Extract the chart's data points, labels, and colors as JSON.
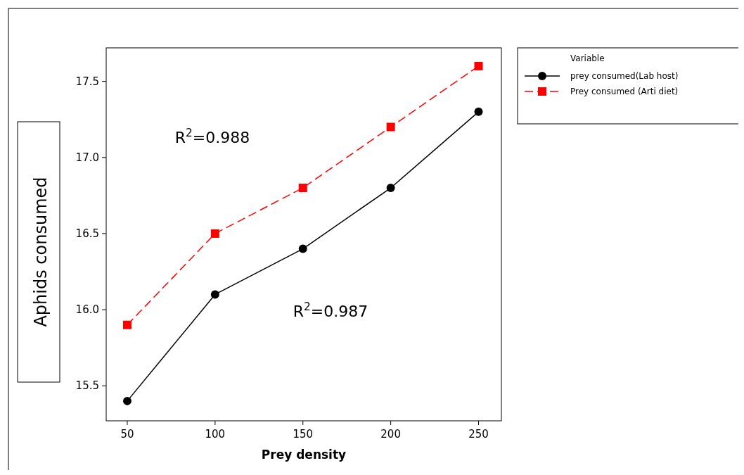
{
  "chart_data": {
    "type": "line",
    "xlabel": "Prey density",
    "ylabel": "Aphids consumed",
    "legend_title": "Variable",
    "legend": "right",
    "grid": false,
    "x": [
      50,
      100,
      150,
      200,
      250
    ],
    "xlim": [
      38,
      263
    ],
    "xticks": [
      50,
      100,
      150,
      200,
      250
    ],
    "ylim": [
      15.27,
      17.72
    ],
    "yticks": [
      {
        "value": 15.5,
        "label": "15.5"
      },
      {
        "value": 16,
        "label": "16.0"
      },
      {
        "value": 16.5,
        "label": "16.5"
      },
      {
        "value": 17,
        "label": "17.0"
      },
      {
        "value": 17.5,
        "label": "17.5"
      }
    ],
    "series": [
      {
        "name": "prey consumed(Lab host)",
        "color": "#000000",
        "marker": "circle",
        "line_style": "solid",
        "values": [
          15.4,
          16.1,
          16.4,
          16.8,
          17.3
        ]
      },
      {
        "name": "Prey consumed (Arti diet)",
        "color": "#ff0000",
        "marker": "square",
        "line_style": "dashed",
        "values": [
          15.9,
          16.5,
          16.8,
          17.2,
          17.6
        ]
      }
    ],
    "annotations": [
      "R$^{2}$=0.988",
      "R$^{2}$=0.987"
    ]
  }
}
